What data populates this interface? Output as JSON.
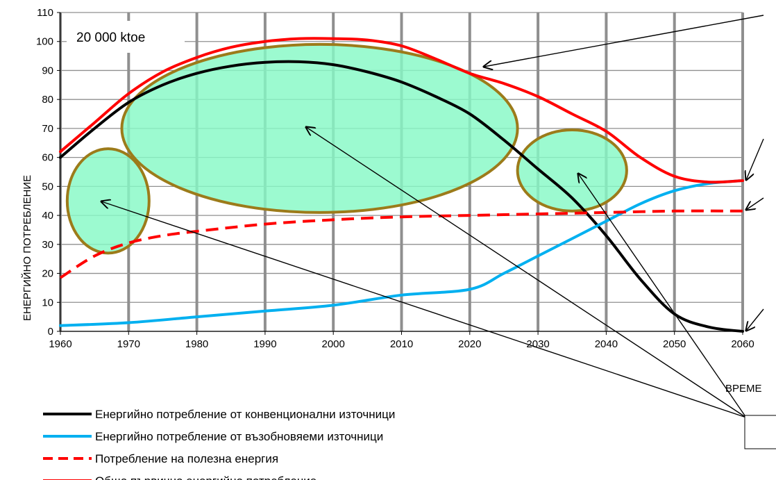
{
  "chart_data": {
    "type": "line",
    "ylabel": "ЕНЕРГИЙНО ПОТРЕБЛЕНИЕ",
    "xlabel": "ВРЕМЕ",
    "annotation": "20 000 ktoe",
    "xlim": [
      1960,
      2060
    ],
    "ylim": [
      0,
      110
    ],
    "x_ticks": [
      "1960",
      "1970",
      "1980",
      "1990",
      "2000",
      "2010",
      "2020",
      "2030",
      "2040",
      "2050",
      "2060"
    ],
    "y_ticks": [
      "0",
      "10",
      "20",
      "30",
      "40",
      "50",
      "60",
      "70",
      "80",
      "90",
      "100",
      "110"
    ],
    "grid": true,
    "legend_position": "bottom-left",
    "series": [
      {
        "name": "Енергийно потребление от конвенционални източници",
        "color": "#000000",
        "style": "solid",
        "points": [
          [
            1960,
            60
          ],
          [
            1965,
            70
          ],
          [
            1970,
            79
          ],
          [
            1975,
            85
          ],
          [
            1980,
            89
          ],
          [
            1985,
            91.5
          ],
          [
            1990,
            92.8
          ],
          [
            1995,
            93
          ],
          [
            2000,
            92
          ],
          [
            2005,
            89.5
          ],
          [
            2010,
            86
          ],
          [
            2015,
            81
          ],
          [
            2020,
            75
          ],
          [
            2025,
            66
          ],
          [
            2030,
            56
          ],
          [
            2035,
            46
          ],
          [
            2040,
            33
          ],
          [
            2045,
            18
          ],
          [
            2050,
            6
          ],
          [
            2055,
            1.5
          ],
          [
            2060,
            0
          ]
        ]
      },
      {
        "name": "Енергийно потребление от възобновяеми източници",
        "color": "#00B0F0",
        "style": "solid",
        "points": [
          [
            1960,
            2
          ],
          [
            1970,
            3
          ],
          [
            1980,
            5
          ],
          [
            1990,
            7
          ],
          [
            2000,
            9
          ],
          [
            2010,
            12.5
          ],
          [
            2020,
            14.5
          ],
          [
            2025,
            20
          ],
          [
            2030,
            26
          ],
          [
            2035,
            32
          ],
          [
            2040,
            38
          ],
          [
            2045,
            44
          ],
          [
            2050,
            48.5
          ],
          [
            2055,
            51
          ],
          [
            2060,
            52
          ]
        ]
      },
      {
        "name": "Потребление на полезна енергия",
        "color": "#FF0000",
        "style": "dashed",
        "points": [
          [
            1960,
            18.5
          ],
          [
            1965,
            26
          ],
          [
            1970,
            30.5
          ],
          [
            1975,
            33
          ],
          [
            1980,
            34.5
          ],
          [
            1990,
            37
          ],
          [
            2000,
            38.5
          ],
          [
            2010,
            39.5
          ],
          [
            2020,
            40
          ],
          [
            2030,
            40.5
          ],
          [
            2040,
            41
          ],
          [
            2050,
            41.5
          ],
          [
            2060,
            41.5
          ]
        ]
      },
      {
        "name": "Общо първично енергийно потребление",
        "color": "#FF0000",
        "style": "solid",
        "points": [
          [
            1960,
            62
          ],
          [
            1965,
            72
          ],
          [
            1970,
            82
          ],
          [
            1975,
            89.5
          ],
          [
            1980,
            94.5
          ],
          [
            1985,
            98
          ],
          [
            1990,
            100
          ],
          [
            1995,
            101
          ],
          [
            2000,
            101
          ],
          [
            2005,
            100.5
          ],
          [
            2010,
            98.5
          ],
          [
            2015,
            94
          ],
          [
            2020,
            89
          ],
          [
            2025,
            85.5
          ],
          [
            2030,
            81
          ],
          [
            2035,
            75
          ],
          [
            2040,
            69
          ],
          [
            2045,
            60
          ],
          [
            2050,
            53.5
          ],
          [
            2055,
            51.5
          ],
          [
            2060,
            52
          ]
        ]
      }
    ],
    "highlight_ellipses": [
      {
        "cx": 1967,
        "cy": 45,
        "rx": 6,
        "ry": 18
      },
      {
        "cx": 1998,
        "cy": 70,
        "rx": 29,
        "ry": 29
      },
      {
        "cx": 2035,
        "cy": 55.5,
        "rx": 8,
        "ry": 14
      }
    ],
    "highlight_fill": "#86F9C6",
    "highlight_stroke": "#9C7B1A"
  }
}
